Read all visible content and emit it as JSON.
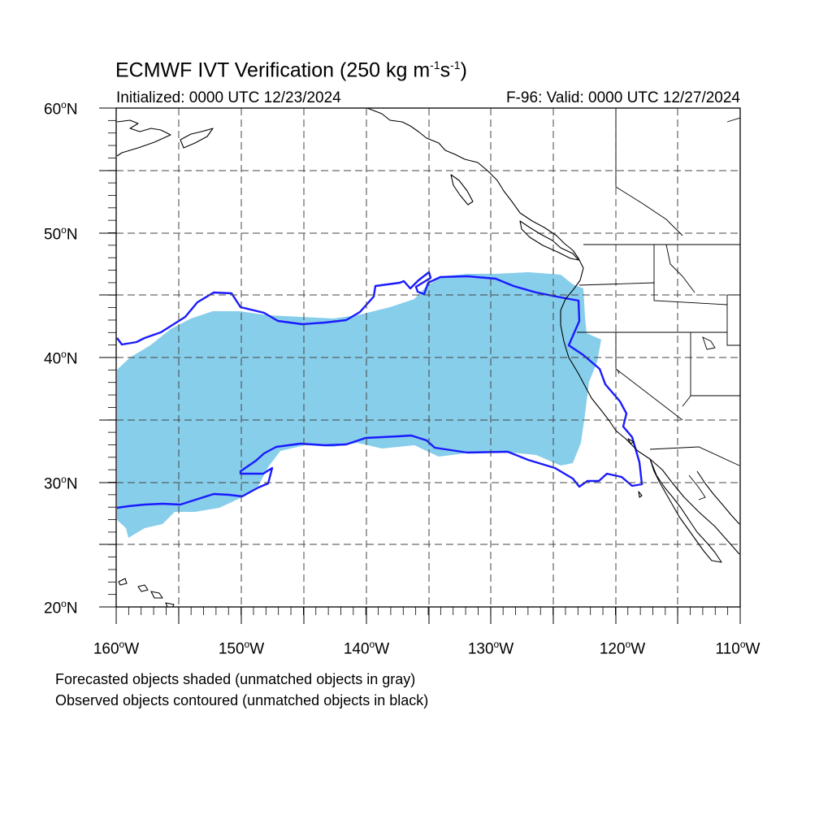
{
  "title": {
    "main": "ECMWF IVT Verification (250 kg m",
    "exp1": "-1",
    "mid": "s",
    "exp2": "-1",
    "end": ")"
  },
  "subtitle_left": "Initialized: 0000 UTC 12/23/2024",
  "subtitle_right": "F-96: Valid: 0000 UTC 12/27/2024",
  "degree_symbol": "o",
  "lat_labels": [
    {
      "num": "60",
      "hemi": "N"
    },
    {
      "num": "50",
      "hemi": "N"
    },
    {
      "num": "40",
      "hemi": "N"
    },
    {
      "num": "30",
      "hemi": "N"
    },
    {
      "num": "20",
      "hemi": "N"
    }
  ],
  "lon_labels": [
    {
      "num": "160",
      "hemi": "W"
    },
    {
      "num": "150",
      "hemi": "W"
    },
    {
      "num": "140",
      "hemi": "W"
    },
    {
      "num": "130",
      "hemi": "W"
    },
    {
      "num": "120",
      "hemi": "W"
    },
    {
      "num": "110",
      "hemi": "W"
    }
  ],
  "notes": [
    "Forecasted objects shaded (unmatched objects in gray)",
    "Observed objects contoured (unmatched objects in black)"
  ],
  "colors": {
    "forecast_fill": "#87ceeb",
    "observed_contour": "#1a1aff",
    "coastline": "#000000",
    "grid": "#444444"
  },
  "map_extent": {
    "lon_min": -160,
    "lon_max": -110,
    "lat_min": 20,
    "lat_max": 60
  }
}
